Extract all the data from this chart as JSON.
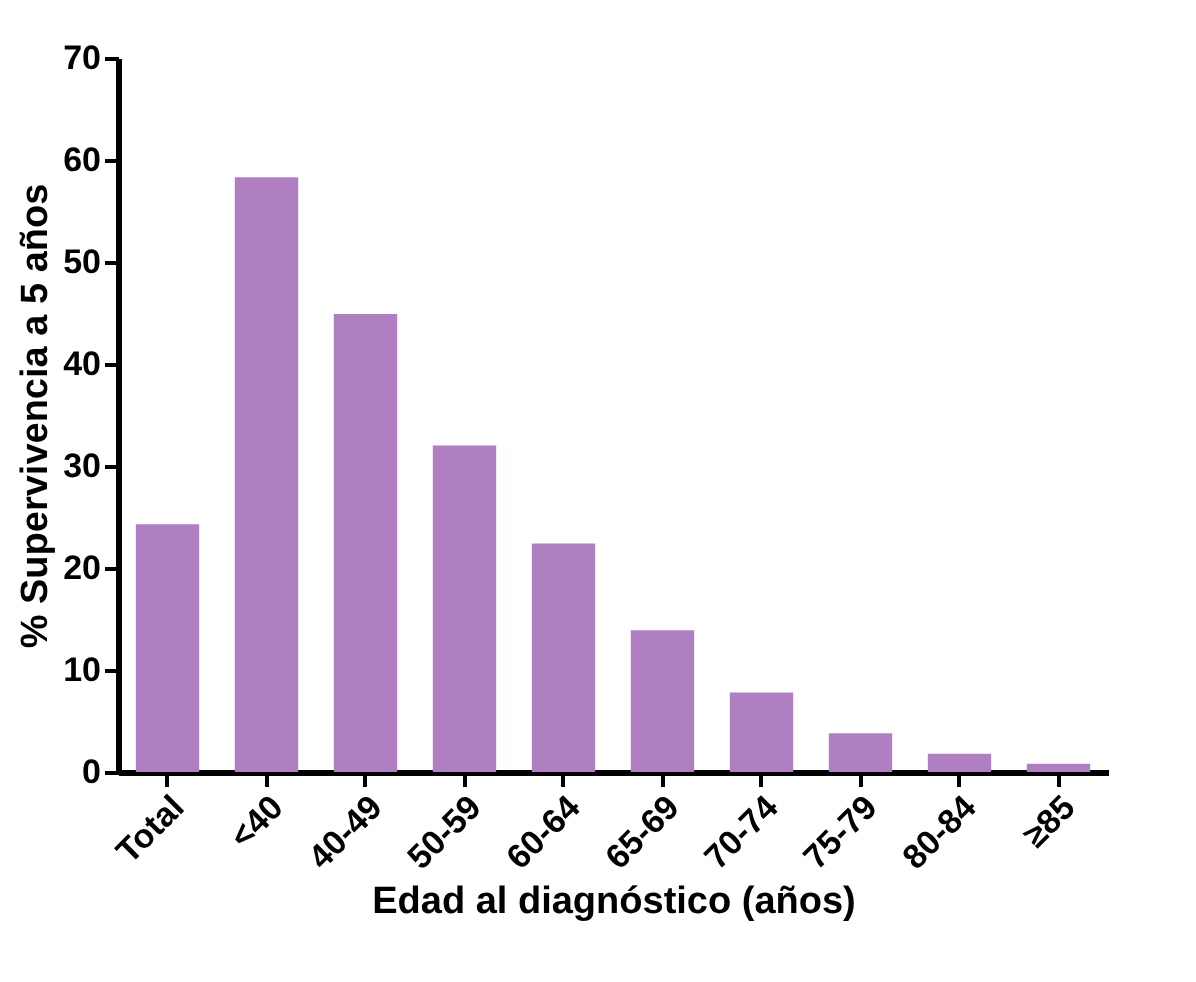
{
  "chart_data": {
    "type": "bar",
    "xlabel": "Edad al diagnóstico (años)",
    "ylabel": "% Supervivencia a 5 años",
    "categories": [
      "Total",
      "<40",
      "40-49",
      "50-59",
      "60-64",
      "65-69",
      "70-74",
      "75-79",
      "80-84",
      "≥85"
    ],
    "values": [
      24.3,
      58.3,
      44.9,
      32,
      22.4,
      13.9,
      7.8,
      3.8,
      1.8,
      0.8
    ],
    "color": "#b07fc2",
    "ylim": [
      0,
      70
    ],
    "yticks": [
      0,
      10,
      20,
      30,
      40,
      50,
      60,
      70
    ],
    "grid": false
  }
}
